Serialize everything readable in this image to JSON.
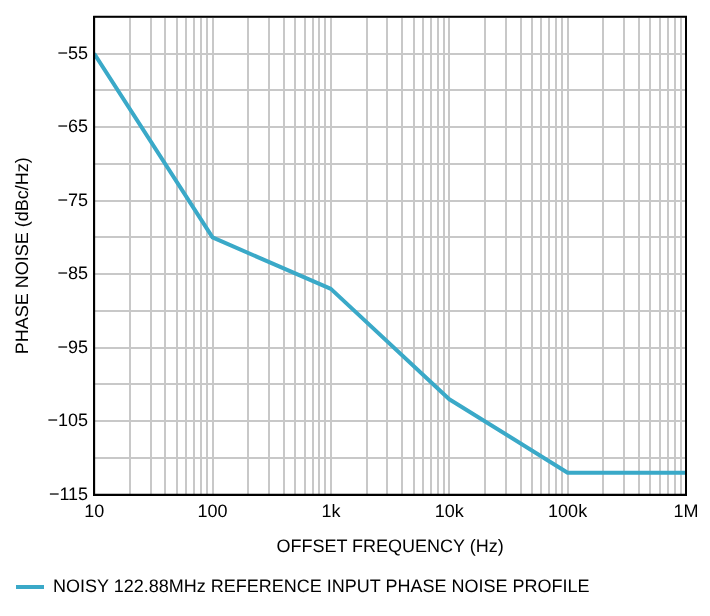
{
  "chart_data": {
    "type": "line",
    "xlabel": "OFFSET FREQUENCY (Hz)",
    "ylabel": "PHASE NOISE (dBc/Hz)",
    "log": "x",
    "x": [
      10,
      100,
      1000,
      10000,
      100000,
      1000000
    ],
    "series": [
      {
        "name": "NOISY 122.88MHz REFERENCE INPUT PHASE NOISE PROFILE",
        "color": "#3aa9c8",
        "values": [
          -55,
          -80,
          -87,
          -102,
          -112,
          -112
        ]
      }
    ],
    "xlim": [
      10,
      1000000
    ],
    "xticks": [
      {
        "value": 10,
        "label": "10"
      },
      {
        "value": 20,
        "label": null
      },
      {
        "value": 30,
        "label": null
      },
      {
        "value": 40,
        "label": null
      },
      {
        "value": 50,
        "label": null
      },
      {
        "value": 60,
        "label": null
      },
      {
        "value": 70,
        "label": null
      },
      {
        "value": 80,
        "label": null
      },
      {
        "value": 90,
        "label": null
      },
      {
        "value": 100,
        "label": "100"
      },
      {
        "value": 200,
        "label": null
      },
      {
        "value": 300,
        "label": null
      },
      {
        "value": 400,
        "label": null
      },
      {
        "value": 500,
        "label": null
      },
      {
        "value": 600,
        "label": null
      },
      {
        "value": 700,
        "label": null
      },
      {
        "value": 800,
        "label": null
      },
      {
        "value": 900,
        "label": null
      },
      {
        "value": 1000,
        "label": "1k"
      },
      {
        "value": 2000,
        "label": null
      },
      {
        "value": 3000,
        "label": null
      },
      {
        "value": 4000,
        "label": null
      },
      {
        "value": 5000,
        "label": null
      },
      {
        "value": 6000,
        "label": null
      },
      {
        "value": 7000,
        "label": null
      },
      {
        "value": 8000,
        "label": null
      },
      {
        "value": 9000,
        "label": null
      },
      {
        "value": 10000,
        "label": "10k"
      },
      {
        "value": 20000,
        "label": null
      },
      {
        "value": 30000,
        "label": null
      },
      {
        "value": 40000,
        "label": null
      },
      {
        "value": 50000,
        "label": null
      },
      {
        "value": 60000,
        "label": null
      },
      {
        "value": 70000,
        "label": null
      },
      {
        "value": 80000,
        "label": null
      },
      {
        "value": 90000,
        "label": null
      },
      {
        "value": 100000,
        "label": "100k"
      },
      {
        "value": 200000,
        "label": null
      },
      {
        "value": 300000,
        "label": null
      },
      {
        "value": 400000,
        "label": null
      },
      {
        "value": 500000,
        "label": null
      },
      {
        "value": 600000,
        "label": null
      },
      {
        "value": 700000,
        "label": null
      },
      {
        "value": 800000,
        "label": null
      },
      {
        "value": 900000,
        "label": null
      },
      {
        "value": 1000000,
        "label": "1M"
      }
    ],
    "ylim": [
      -115,
      -50
    ],
    "yticks": [
      -115,
      {
        "value": -110,
        "label": null
      },
      -105,
      {
        "value": -100,
        "label": null
      },
      -95,
      {
        "value": -90,
        "label": null
      },
      -85,
      {
        "value": -80,
        "label": null
      },
      -75,
      {
        "value": -70,
        "label": null
      },
      -65,
      {
        "value": -60,
        "label": null
      },
      -55,
      {
        "value": -50,
        "label": null
      }
    ],
    "grid": true,
    "legend": "bottom",
    "marker": "none",
    "line_style": "solid"
  }
}
